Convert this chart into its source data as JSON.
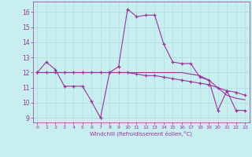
{
  "xlabel": "Windchill (Refroidissement éolien,°C)",
  "background_color": "#c8eef0",
  "grid_color": "#b0dede",
  "line_color": "#993399",
  "xlim": [
    -0.5,
    23.5
  ],
  "ylim": [
    8.7,
    16.7
  ],
  "yticks": [
    9,
    10,
    11,
    12,
    13,
    14,
    15,
    16
  ],
  "xticks": [
    0,
    1,
    2,
    3,
    4,
    5,
    6,
    7,
    8,
    9,
    10,
    11,
    12,
    13,
    14,
    15,
    16,
    17,
    18,
    19,
    20,
    21,
    22,
    23
  ],
  "line1_x": [
    0,
    1,
    2,
    3,
    4,
    5,
    6,
    7,
    8,
    9,
    10,
    11,
    12,
    13,
    14,
    15,
    16,
    17,
    18,
    19,
    20,
    21,
    22,
    23
  ],
  "line1_y": [
    12.0,
    12.7,
    12.2,
    11.1,
    11.1,
    11.1,
    10.1,
    9.0,
    12.0,
    12.4,
    16.2,
    15.7,
    15.8,
    15.8,
    13.9,
    12.7,
    12.6,
    12.6,
    11.7,
    11.5,
    9.5,
    10.8,
    9.5,
    9.5
  ],
  "line2_x": [
    0,
    1,
    2,
    3,
    4,
    5,
    6,
    7,
    8,
    9,
    10,
    11,
    12,
    13,
    14,
    15,
    16,
    17,
    18,
    19,
    20,
    21,
    22,
    23
  ],
  "line2_y": [
    12.0,
    12.0,
    12.0,
    12.0,
    12.0,
    12.0,
    12.0,
    12.0,
    12.0,
    12.0,
    12.0,
    11.9,
    11.8,
    11.8,
    11.7,
    11.6,
    11.5,
    11.4,
    11.3,
    11.2,
    11.0,
    10.8,
    10.7,
    10.5
  ],
  "line3_x": [
    0,
    1,
    2,
    3,
    4,
    5,
    6,
    7,
    8,
    9,
    10,
    11,
    12,
    13,
    14,
    15,
    16,
    17,
    18,
    19,
    20,
    21,
    22,
    23
  ],
  "line3_y": [
    12.0,
    12.0,
    12.0,
    12.0,
    12.0,
    12.0,
    12.0,
    12.0,
    12.0,
    12.0,
    12.0,
    12.0,
    12.0,
    12.0,
    12.0,
    12.0,
    12.0,
    11.9,
    11.8,
    11.5,
    11.0,
    10.5,
    10.3,
    10.2
  ]
}
